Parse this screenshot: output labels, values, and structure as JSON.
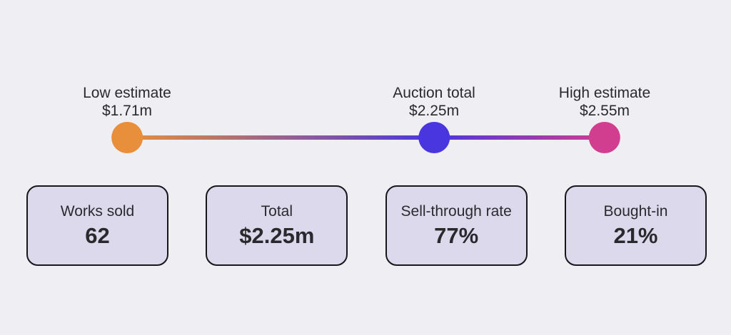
{
  "background": "#EFEEF2",
  "text_color": "#2A2A2E",
  "chart_data": {
    "type": "scatter",
    "title": "",
    "xlabel": "",
    "ylabel": "",
    "axis": {
      "min": 1.71,
      "max": 2.55,
      "unit_prefix": "$",
      "unit_suffix": "m"
    },
    "grid": false,
    "legend": "none",
    "points": [
      {
        "label": "Low estimate",
        "value": 1.71,
        "value_label": "$1.71m",
        "color": "#E78F3A"
      },
      {
        "label": "Auction total",
        "value": 2.25,
        "value_label": "$2.25m",
        "color": "#4A36DE"
      },
      {
        "label": "High estimate",
        "value": 2.55,
        "value_label": "$2.55m",
        "color": "#D13D8F"
      }
    ]
  },
  "stats": {
    "card_bg": "#DBD9EB",
    "card_border": "#17161A",
    "cards": [
      {
        "label": "Works sold",
        "value": "62"
      },
      {
        "label": "Total",
        "value": "$2.25m"
      },
      {
        "label": "Sell-through rate",
        "value": "77%"
      },
      {
        "label": "Bought-in",
        "value": "21%"
      }
    ]
  }
}
